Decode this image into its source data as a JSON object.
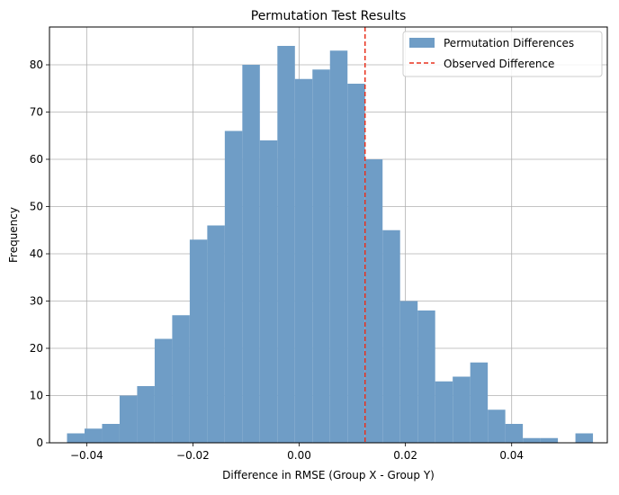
{
  "chart_data": {
    "type": "bar",
    "title": "Permutation Test Results",
    "xlabel": "Difference in RMSE (Group X - Group Y)",
    "ylabel": "Frequency",
    "xlim": [
      -0.047,
      0.058
    ],
    "ylim": [
      0,
      88
    ],
    "bin_start": -0.0437,
    "bin_width": 0.0033,
    "counts": [
      2,
      3,
      4,
      10,
      12,
      22,
      27,
      43,
      46,
      66,
      80,
      64,
      84,
      77,
      79,
      83,
      76,
      60,
      45,
      30,
      28,
      13,
      14,
      17,
      7,
      4,
      1,
      1,
      0,
      2
    ],
    "observed_difference": 0.0124,
    "x_ticks": [
      -0.04,
      -0.02,
      0.0,
      0.02,
      0.04
    ],
    "x_tick_labels": [
      "−0.04",
      "−0.02",
      "0.00",
      "0.02",
      "0.04"
    ],
    "y_ticks": [
      0,
      10,
      20,
      30,
      40,
      50,
      60,
      70,
      80
    ],
    "y_tick_labels": [
      "0",
      "10",
      "20",
      "30",
      "40",
      "50",
      "60",
      "70",
      "80"
    ],
    "grid": true,
    "legend_position": "top-right",
    "legend": [
      {
        "label": "Permutation Differences",
        "kind": "patch"
      },
      {
        "label": "Observed Difference",
        "kind": "dashed-line"
      }
    ],
    "colors": {
      "bars": "#6f9dc6",
      "observed_line": "#e8321e",
      "grid": "#b0b0b0"
    }
  }
}
